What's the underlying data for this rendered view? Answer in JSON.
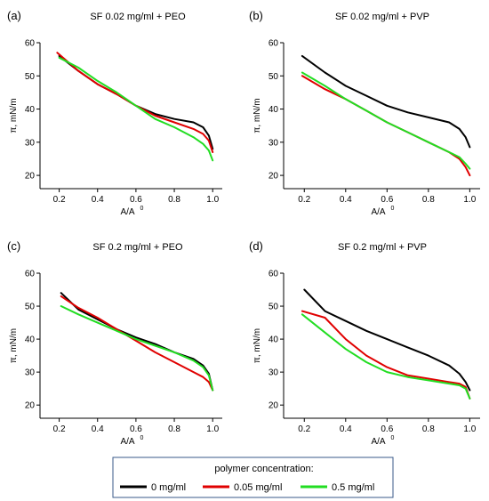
{
  "chart_data": [
    {
      "type": "line",
      "letter": "(a)",
      "title": "SF 0.02 mg/ml + PEO",
      "xlabel": "A/A",
      "xlabel_sup": "0",
      "ylabel": "π, mN/m",
      "xlim": [
        0.1,
        1.05
      ],
      "ylim": [
        16,
        60
      ],
      "xticks": [
        "0.2",
        "0.4",
        "0.6",
        "0.8",
        "1.0"
      ],
      "yticks": [
        "20",
        "30",
        "40",
        "50",
        "60"
      ],
      "series": [
        {
          "color": "#000000",
          "x": [
            0.2,
            0.3,
            0.4,
            0.5,
            0.6,
            0.7,
            0.8,
            0.9,
            0.95,
            0.98,
            1.0
          ],
          "y": [
            56,
            51.5,
            47.5,
            44.5,
            41,
            38.5,
            37,
            36,
            34.5,
            32,
            28
          ]
        },
        {
          "color": "#e00000",
          "x": [
            0.19,
            0.3,
            0.4,
            0.5,
            0.6,
            0.7,
            0.8,
            0.9,
            0.95,
            0.98,
            1.0
          ],
          "y": [
            57,
            51.5,
            47.5,
            44.5,
            41,
            38,
            36,
            34,
            32.5,
            30.5,
            27
          ]
        },
        {
          "color": "#22dd22",
          "x": [
            0.2,
            0.3,
            0.4,
            0.5,
            0.6,
            0.7,
            0.8,
            0.9,
            0.95,
            0.98,
            1.0
          ],
          "y": [
            55.5,
            52.5,
            48.5,
            45,
            41,
            37,
            34.5,
            31.5,
            29.5,
            27.5,
            24.5
          ]
        }
      ]
    },
    {
      "type": "line",
      "letter": "(b)",
      "title": "SF 0.02 mg/ml + PVP",
      "xlabel": "A/A",
      "xlabel_sup": "0",
      "ylabel": "π, mN/m",
      "xlim": [
        0.1,
        1.05
      ],
      "ylim": [
        16,
        60
      ],
      "xticks": [
        "0.2",
        "0.4",
        "0.6",
        "0.8",
        "1.0"
      ],
      "yticks": [
        "20",
        "30",
        "40",
        "50",
        "60"
      ],
      "series": [
        {
          "color": "#000000",
          "x": [
            0.19,
            0.3,
            0.4,
            0.5,
            0.6,
            0.7,
            0.8,
            0.9,
            0.95,
            0.98,
            1.0
          ],
          "y": [
            56,
            51,
            47,
            44,
            41,
            39,
            37.5,
            36,
            34,
            31.5,
            28.5
          ]
        },
        {
          "color": "#e00000",
          "x": [
            0.19,
            0.3,
            0.4,
            0.5,
            0.6,
            0.7,
            0.8,
            0.9,
            0.95,
            0.98,
            1.0
          ],
          "y": [
            50,
            46,
            43,
            39.5,
            36,
            33,
            30,
            27,
            25,
            22.5,
            20
          ]
        },
        {
          "color": "#22dd22",
          "x": [
            0.19,
            0.3,
            0.4,
            0.5,
            0.6,
            0.7,
            0.8,
            0.9,
            0.95,
            0.98,
            1.0
          ],
          "y": [
            51,
            47,
            43,
            39.5,
            36,
            33,
            30,
            27,
            25.5,
            23.5,
            22
          ]
        }
      ]
    },
    {
      "type": "line",
      "letter": "(c)",
      "title": "SF 0.2 mg/ml + PEO",
      "xlabel": "A/A",
      "xlabel_sup": "0",
      "ylabel": "π, mN/m",
      "xlim": [
        0.1,
        1.05
      ],
      "ylim": [
        16,
        60
      ],
      "xticks": [
        "0.2",
        "0.4",
        "0.6",
        "0.8",
        "1.0"
      ],
      "yticks": [
        "20",
        "30",
        "40",
        "50",
        "60"
      ],
      "series": [
        {
          "color": "#000000",
          "x": [
            0.21,
            0.3,
            0.4,
            0.5,
            0.6,
            0.7,
            0.8,
            0.9,
            0.95,
            0.98,
            1.0
          ],
          "y": [
            54,
            49,
            46,
            43,
            40.5,
            38.5,
            36,
            34,
            32,
            29.5,
            24.5
          ]
        },
        {
          "color": "#e00000",
          "x": [
            0.21,
            0.3,
            0.4,
            0.5,
            0.6,
            0.7,
            0.8,
            0.9,
            0.95,
            0.98,
            1.0
          ],
          "y": [
            53,
            49.5,
            46.5,
            43,
            39.5,
            36,
            33,
            30,
            28.5,
            27,
            24.5
          ]
        },
        {
          "color": "#22dd22",
          "x": [
            0.21,
            0.3,
            0.4,
            0.5,
            0.6,
            0.7,
            0.8,
            0.9,
            0.95,
            0.98,
            1.0
          ],
          "y": [
            50,
            47.5,
            45,
            42.5,
            40,
            38,
            36,
            33.5,
            31.5,
            29,
            24.5
          ]
        }
      ]
    },
    {
      "type": "line",
      "letter": "(d)",
      "title": "SF 0.2 mg/ml + PVP",
      "xlabel": "A/A",
      "xlabel_sup": "0",
      "ylabel": "π, mN/m",
      "xlim": [
        0.1,
        1.05
      ],
      "ylim": [
        16,
        60
      ],
      "xticks": [
        "0.2",
        "0.4",
        "0.6",
        "0.8",
        "1.0"
      ],
      "yticks": [
        "20",
        "30",
        "40",
        "50",
        "60"
      ],
      "series": [
        {
          "color": "#000000",
          "x": [
            0.2,
            0.3,
            0.4,
            0.5,
            0.6,
            0.7,
            0.8,
            0.9,
            0.95,
            0.98,
            1.0
          ],
          "y": [
            55,
            48.5,
            45.5,
            42.5,
            40,
            37.5,
            35,
            32,
            29.5,
            27,
            24.5
          ]
        },
        {
          "color": "#e00000",
          "x": [
            0.19,
            0.3,
            0.4,
            0.5,
            0.6,
            0.7,
            0.8,
            0.9,
            0.95,
            0.98,
            1.0
          ],
          "y": [
            48.5,
            46.5,
            40,
            35,
            31.5,
            29,
            28,
            27,
            26.5,
            25.5,
            22
          ]
        },
        {
          "color": "#22dd22",
          "x": [
            0.19,
            0.3,
            0.4,
            0.5,
            0.6,
            0.7,
            0.8,
            0.9,
            0.95,
            0.98,
            1.0
          ],
          "y": [
            47.5,
            42,
            37,
            33,
            30,
            28.5,
            27.5,
            26.5,
            26,
            25,
            22
          ]
        }
      ]
    }
  ],
  "legend": {
    "title": "polymer concentration:",
    "entries": [
      {
        "label": "0 mg/ml",
        "color": "#000000"
      },
      {
        "label": "0.05 mg/ml",
        "color": "#e00000"
      },
      {
        "label": "0.5 mg/ml",
        "color": "#22dd22"
      }
    ]
  }
}
